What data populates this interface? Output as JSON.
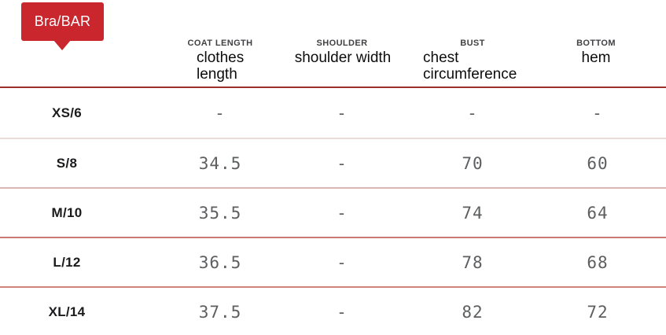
{
  "badge": {
    "label": "Bra/BAR"
  },
  "colors": {
    "badge_red": "#c9262e",
    "header_divider": "#9c2f27",
    "row_dividers": [
      "#e8dbd9",
      "#dcb6b3",
      "#ca7a70",
      "#cf837a"
    ],
    "value_text": "#5c5e60",
    "size_text": "#1b1b1d"
  },
  "table": {
    "columns": [
      {
        "code": "COAT LENGTH",
        "name": "clothes\nlength"
      },
      {
        "code": "SHOULDER",
        "name": "shoulder width"
      },
      {
        "code": "BUST",
        "name": "chest\ncircumference"
      },
      {
        "code": "BOTTOM",
        "name": "hem"
      }
    ],
    "rows": [
      {
        "size": "XS/6",
        "values": [
          "-",
          "-",
          "-",
          "-"
        ]
      },
      {
        "size": "S/8",
        "values": [
          "34.5",
          "-",
          "70",
          "60"
        ]
      },
      {
        "size": "M/10",
        "values": [
          "35.5",
          "-",
          "74",
          "64"
        ]
      },
      {
        "size": "L/12",
        "values": [
          "36.5",
          "-",
          "78",
          "68"
        ]
      },
      {
        "size": "XL/14",
        "values": [
          "37.5",
          "-",
          "82",
          "72"
        ]
      }
    ]
  }
}
